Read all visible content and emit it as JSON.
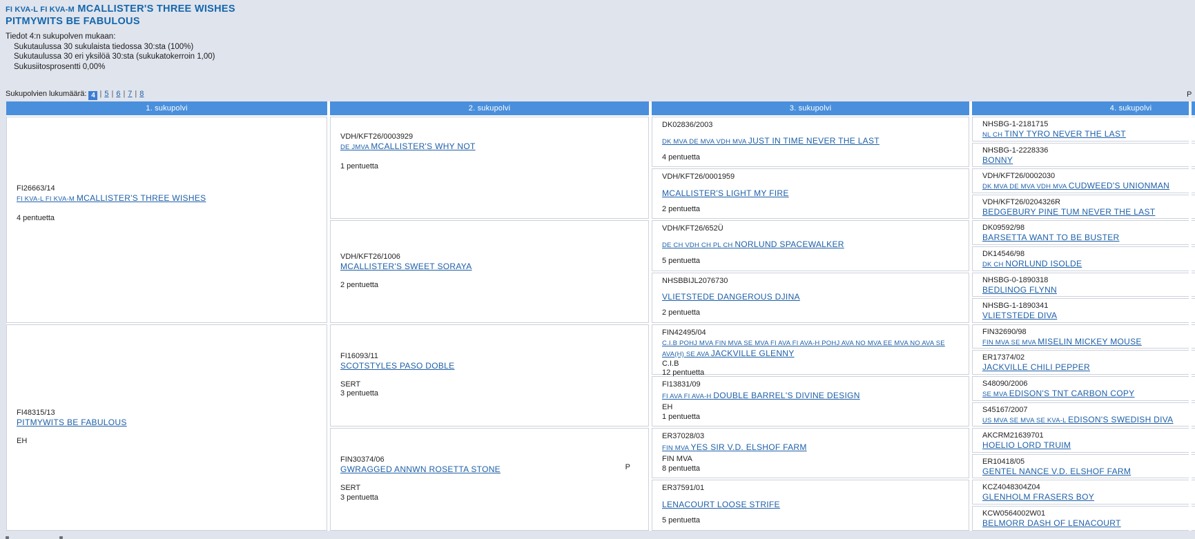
{
  "page": {
    "title_prefix": "FI KVA-L FI KVA-M",
    "title_name": "MCALLISTER'S THREE WISHES",
    "title_line2": "PITMYWITS BE FABULOUS",
    "info_heading": "Tiedot 4:n sukupolven mukaan:",
    "info_lines": [
      "Sukutaulussa 30 sukulaista tiedossa 30:sta (100%)",
      "Sukutaulussa 30 eri yksilöä 30:sta (sukukatokerroin 1,00)",
      "Sukusiitosprosentti 0,00%"
    ],
    "generations_label": "Sukupolvien lukumäärä:",
    "generations_selected": "4",
    "generations_links": [
      "5",
      "6",
      "7",
      "8"
    ],
    "corner_marker": "P"
  },
  "colors": {
    "page_bg": "#e0e4ed",
    "header_bg": "#4a8fdc",
    "link": "#1d5fa8",
    "title": "#1467ac",
    "border": "#ccd1da",
    "selected_box": "#3d7ed2"
  },
  "table": {
    "headers": [
      "1. sukupolvi",
      "2. sukupolvi",
      "3. sukupolvi",
      "4. sukupolvi"
    ],
    "columns": [
      [
        {
          "reg": "FI26663/14",
          "titles": "FI KVA-L FI KVA-M",
          "name": "MCALLISTER'S THREE WISHES",
          "extra": [
            "4 pentuetta"
          ]
        },
        {
          "reg": "FI48315/13",
          "titles": "",
          "name": "PITMYWITS BE FABULOUS",
          "extra": [
            "EH"
          ]
        }
      ],
      [
        {
          "reg": "VDH/KFT26/0003929",
          "titles": "DE JMVA",
          "name": "MCALLISTER'S WHY NOT",
          "extra": [
            "1 pentuetta"
          ]
        },
        {
          "reg": "VDH/KFT26/1006",
          "titles": "",
          "name": "MCALLISTER'S SWEET SORAYA",
          "extra": [
            "2 pentuetta"
          ]
        },
        {
          "reg": "FI16093/11",
          "titles": "",
          "name": "SCOTSTYLES PASO DOBLE",
          "extra": [
            "SERT",
            "3 pentuetta"
          ]
        },
        {
          "reg": "FIN30374/06",
          "titles": "",
          "name": "GWRAGGED ANNWN ROSETTA STONE",
          "extra": [
            "SERT",
            "3 pentuetta"
          ],
          "marker": "P"
        }
      ],
      [
        {
          "reg": "DK02836/2003",
          "titles": "DK MVA DE MVA VDH MVA",
          "name": "JUST IN TIME NEVER THE LAST",
          "extra": [
            "4 pentuetta"
          ]
        },
        {
          "reg": "VDH/KFT26/0001959",
          "titles": "",
          "name": "MCALLISTER'S LIGHT MY FIRE",
          "extra": [
            "2 pentuetta"
          ]
        },
        {
          "reg": "VDH/KFT26/652Ü",
          "titles": "DE CH VDH CH PL CH",
          "name": "NORLUND SPACEWALKER",
          "extra": [
            "5 pentuetta"
          ]
        },
        {
          "reg": "NHSBBIJL2076730",
          "titles": "",
          "name": "VLIETSTEDE DANGEROUS DJINA",
          "extra": [
            "2 pentuetta"
          ]
        },
        {
          "reg": "FIN42495/04",
          "titles": "C.I.B POHJ MVA FIN MVA SE MVA FI AVA FI AVA-H POHJ AVA NO MVA EE MVA NO AVA SE AVA(H) SE AVA",
          "name": "JACKVILLE GLENNY",
          "extra": [
            "C.I.B",
            "12 pentuetta"
          ]
        },
        {
          "reg": "FI13831/09",
          "titles": "FI AVA FI AVA-H",
          "name": "DOUBLE BARREL'S DIVINE DESIGN",
          "extra": [
            "EH",
            "1 pentuetta"
          ]
        },
        {
          "reg": "ER37028/03",
          "titles": "FIN MVA",
          "name": "YES SIR V.D. ELSHOF FARM",
          "extra": [
            "FIN MVA",
            "8 pentuetta"
          ]
        },
        {
          "reg": "ER37591/01",
          "titles": "",
          "name": "LENACOURT LOOSE STRIFE",
          "extra": [
            "5 pentuetta"
          ]
        }
      ],
      [
        {
          "reg": "NHSBG-1-2181715",
          "titles": "NL CH",
          "name": "TINY TYRO NEVER THE LAST"
        },
        {
          "reg": "NHSBG-1-2228336",
          "titles": "",
          "name": "BONNY"
        },
        {
          "reg": "VDH/KFT26/0002030",
          "titles": "DK MVA DE MVA VDH MVA",
          "name": "CUDWEED'S UNIONMAN"
        },
        {
          "reg": "VDH/KFT26/0204326R",
          "titles": "",
          "name": "BEDGEBURY PINE TUM NEVER THE LAST"
        },
        {
          "reg": "DK09592/98",
          "titles": "",
          "name": "BARSETTA WANT TO BE BUSTER"
        },
        {
          "reg": "DK14546/98",
          "titles": "DK CH",
          "name": "NORLUND ISOLDE"
        },
        {
          "reg": "NHSBG-0-1890318",
          "titles": "",
          "name": "BEDLINOG FLYNN"
        },
        {
          "reg": "NHSBG-1-1890341",
          "titles": "",
          "name": "VLIETSTEDE DIVA"
        },
        {
          "reg": "FIN32690/98",
          "titles": "FIN MVA SE MVA",
          "name": "MISELIN MICKEY MOUSE"
        },
        {
          "reg": "ER17374/02",
          "titles": "",
          "name": "JACKVILLE CHILI PEPPER"
        },
        {
          "reg": "S48090/2006",
          "titles": "SE MVA",
          "name": "EDISON'S TNT CARBON COPY"
        },
        {
          "reg": "S45167/2007",
          "titles": "US MVA SE MVA SE KVA-L",
          "name": "EDISON'S SWEDISH DIVA"
        },
        {
          "reg": "AKCRM21639701",
          "titles": "",
          "name": "HOELIO LORD TRUIM"
        },
        {
          "reg": "ER10418/05",
          "titles": "",
          "name": "GENTEL NANCE V.D. ELSHOF FARM"
        },
        {
          "reg": "KCZ4048304Z04",
          "titles": "",
          "name": "GLENHOLM FRASERS BOY"
        },
        {
          "reg": "KCW0564002W01",
          "titles": "",
          "name": "BELMORR DASH OF LENACOURT"
        }
      ]
    ]
  }
}
